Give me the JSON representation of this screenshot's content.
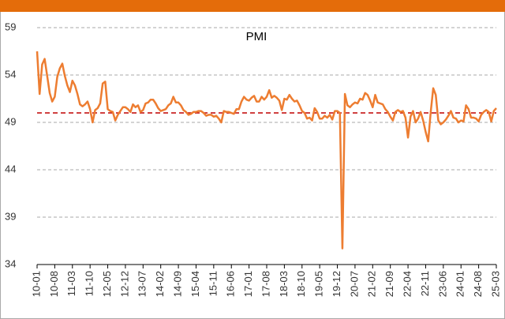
{
  "chart_data": {
    "type": "line",
    "title": "PMI",
    "categories": [
      "10-01",
      null,
      null,
      null,
      null,
      null,
      null,
      "10-08",
      null,
      null,
      null,
      null,
      null,
      null,
      "11-03",
      null,
      null,
      null,
      null,
      null,
      null,
      "11-10",
      null,
      null,
      null,
      null,
      null,
      null,
      "12-05",
      null,
      null,
      null,
      null,
      null,
      null,
      "12-12",
      null,
      null,
      null,
      null,
      null,
      null,
      "13-07",
      null,
      null,
      null,
      null,
      null,
      null,
      "14-02",
      null,
      null,
      null,
      null,
      null,
      null,
      "14-09",
      null,
      null,
      null,
      null,
      null,
      null,
      "15-04",
      null,
      null,
      null,
      null,
      null,
      null,
      "15-11",
      null,
      null,
      null,
      null,
      null,
      null,
      "16-06",
      null,
      null,
      null,
      null,
      null,
      null,
      "17-01",
      null,
      null,
      null,
      null,
      null,
      null,
      "17-08",
      null,
      null,
      null,
      null,
      null,
      null,
      "18-03",
      null,
      null,
      null,
      null,
      null,
      null,
      "18-10",
      null,
      null,
      null,
      null,
      null,
      null,
      "19-05",
      null,
      null,
      null,
      null,
      null,
      null,
      "19-12",
      null,
      null,
      null,
      null,
      null,
      null,
      "20-07",
      null,
      null,
      null,
      null,
      null,
      null,
      "21-02",
      null,
      null,
      null,
      null,
      null,
      null,
      "21-09",
      null,
      null,
      null,
      null,
      null,
      null,
      "22-04",
      null,
      null,
      null,
      null,
      null,
      null,
      "22-11",
      null,
      null,
      null,
      null,
      null,
      null,
      "23-06",
      null,
      null,
      null,
      null,
      null,
      null,
      "24-01",
      null,
      null,
      null,
      null,
      null,
      null,
      "24-08",
      null,
      null,
      null,
      null,
      null,
      null,
      "25-03"
    ],
    "series": [
      {
        "name": "PMI",
        "color": "#ed7d31",
        "values": [
          56.5,
          52.0,
          55.1,
          55.7,
          53.9,
          52.1,
          51.2,
          51.7,
          53.8,
          54.7,
          55.2,
          53.9,
          52.9,
          52.2,
          53.4,
          52.9,
          52.0,
          50.9,
          50.7,
          50.9,
          51.2,
          50.4,
          49.0,
          50.3,
          50.5,
          51.0,
          53.1,
          53.3,
          50.4,
          50.2,
          50.1,
          49.2,
          49.8,
          50.2,
          50.6,
          50.6,
          50.4,
          50.1,
          50.9,
          50.6,
          50.8,
          50.1,
          50.3,
          51.0,
          51.1,
          51.4,
          51.4,
          51.0,
          50.5,
          50.2,
          50.3,
          50.4,
          50.8,
          51.0,
          51.7,
          51.1,
          51.1,
          50.8,
          50.3,
          50.1,
          49.8,
          49.9,
          50.1,
          50.1,
          50.2,
          50.2,
          50.0,
          49.7,
          49.8,
          49.8,
          49.6,
          49.7,
          49.4,
          49.0,
          50.2,
          50.1,
          50.1,
          50.0,
          49.9,
          50.4,
          50.4,
          51.2,
          51.7,
          51.4,
          51.3,
          51.6,
          51.8,
          51.2,
          51.2,
          51.7,
          51.4,
          51.7,
          52.4,
          51.6,
          51.8,
          51.6,
          51.3,
          50.3,
          51.5,
          51.4,
          51.9,
          51.5,
          51.2,
          51.3,
          50.8,
          50.2,
          50.0,
          49.4,
          49.5,
          49.2,
          50.5,
          50.1,
          49.4,
          49.4,
          49.7,
          49.5,
          49.8,
          49.3,
          50.2,
          50.2,
          50.0,
          35.7,
          52.0,
          50.8,
          50.6,
          50.9,
          51.1,
          51.0,
          51.5,
          51.4,
          52.1,
          51.9,
          51.3,
          50.6,
          51.9,
          51.1,
          51.0,
          50.9,
          50.4,
          50.1,
          49.6,
          49.2,
          50.1,
          50.3,
          50.1,
          50.2,
          49.5,
          47.4,
          49.6,
          50.2,
          49.0,
          49.4,
          50.1,
          49.2,
          48.0,
          47.0,
          50.1,
          52.6,
          51.9,
          49.2,
          48.8,
          49.0,
          49.3,
          49.7,
          50.2,
          49.5,
          49.4,
          49.0,
          49.2,
          49.1,
          50.8,
          50.4,
          49.5,
          49.5,
          49.4,
          49.1,
          49.8,
          50.1,
          50.3,
          50.1,
          49.1,
          50.2,
          50.5
        ]
      }
    ],
    "ylim": [
      34,
      59
    ],
    "yticks": [
      34,
      39,
      44,
      49,
      54,
      59
    ],
    "grid": true,
    "reference_line": {
      "value": 50,
      "color": "#c00000"
    }
  }
}
